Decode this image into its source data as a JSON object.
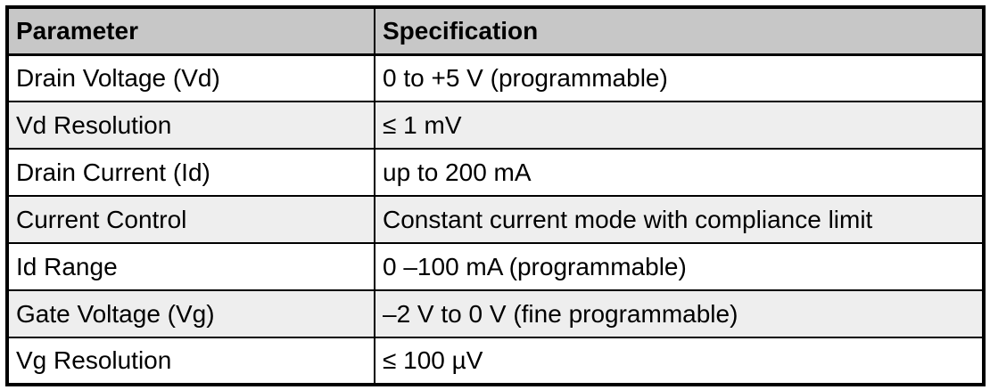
{
  "table": {
    "headers": [
      "Parameter",
      "Specification"
    ],
    "rows": [
      {
        "parameter": "Drain Voltage (Vd)",
        "specification": "0 to +5 V (programmable)"
      },
      {
        "parameter": "Vd Resolution",
        "specification": "≤ 1 mV"
      },
      {
        "parameter": "Drain Current (Id)",
        "specification": "up to 200 mA"
      },
      {
        "parameter": "Current Control",
        "specification": "Constant current mode with compliance limit"
      },
      {
        "parameter": "Id Range",
        "specification": "0 –100 mA (programmable)"
      },
      {
        "parameter": "Gate Voltage (Vg)",
        "specification": "–2 V to 0 V (fine programmable)"
      },
      {
        "parameter": "Vg Resolution",
        "specification": "≤ 100 µV"
      }
    ]
  },
  "colors": {
    "header_bg": "#c7c7c7",
    "alt_row_bg": "#eeeeee",
    "row_bg": "#ffffff",
    "border": "#000000"
  }
}
